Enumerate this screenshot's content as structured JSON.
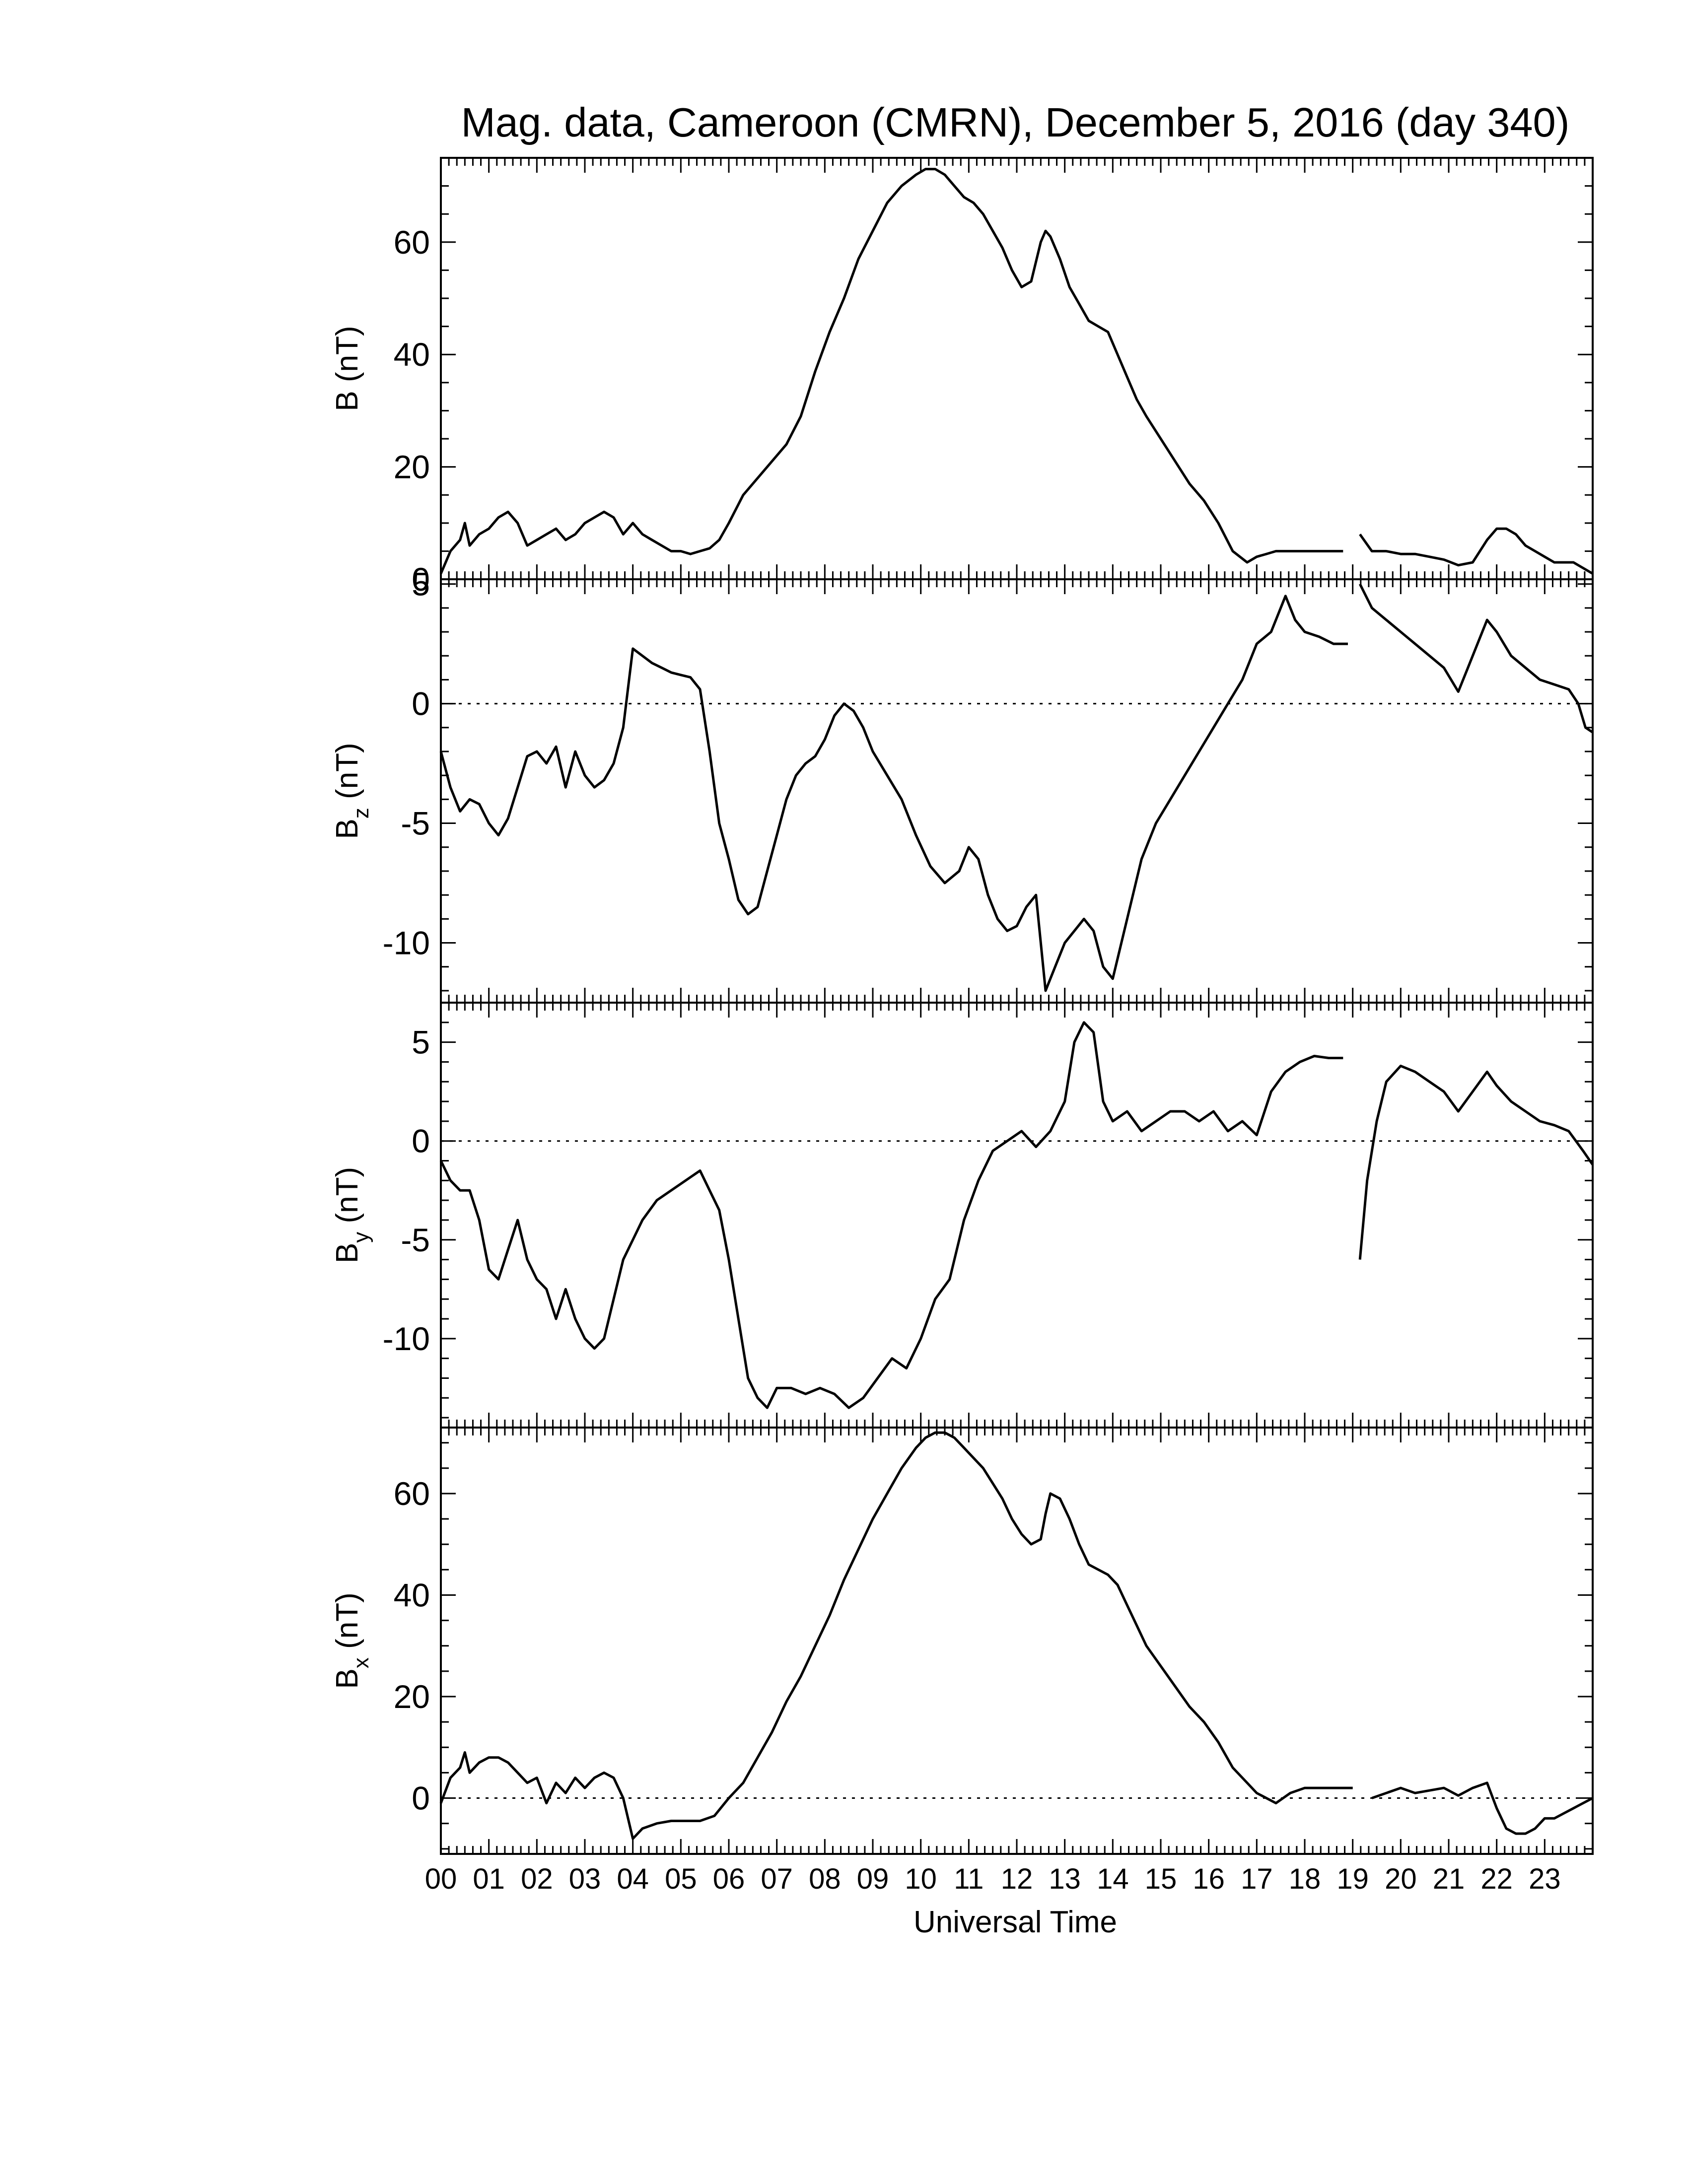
{
  "chart_data": {
    "type": "line",
    "title": "Mag. data, Cameroon (CMRN), December 5, 2016 (day 340)",
    "xlabel": "Universal Time",
    "xlim": [
      0,
      24
    ],
    "x_tick_labels": [
      "00",
      "01",
      "02",
      "03",
      "04",
      "05",
      "06",
      "07",
      "08",
      "09",
      "10",
      "11",
      "12",
      "13",
      "14",
      "15",
      "16",
      "17",
      "18",
      "19",
      "20",
      "21",
      "22",
      "23"
    ],
    "grid": false,
    "line_color": "#000000",
    "panels": [
      {
        "id": "b",
        "ylabel_main": "B",
        "ylabel_sub": "",
        "ylabel_unit": "(nT)",
        "ylim": [
          0,
          75
        ],
        "yticks": [
          0,
          20,
          40,
          60
        ],
        "zero_line": false,
        "gap": [
          19.0,
          19.15
        ],
        "x": [
          0,
          0.2,
          0.4,
          0.5,
          0.6,
          0.8,
          1.0,
          1.2,
          1.4,
          1.6,
          1.8,
          2.0,
          2.2,
          2.4,
          2.6,
          2.8,
          3.0,
          3.2,
          3.4,
          3.6,
          3.8,
          4.0,
          4.2,
          4.4,
          4.6,
          4.8,
          5.0,
          5.2,
          5.4,
          5.6,
          5.8,
          6.0,
          6.3,
          6.6,
          6.9,
          7.2,
          7.5,
          7.8,
          8.1,
          8.4,
          8.7,
          9.0,
          9.3,
          9.6,
          9.9,
          10.1,
          10.3,
          10.5,
          10.7,
          10.9,
          11.1,
          11.3,
          11.5,
          11.7,
          11.9,
          12.1,
          12.3,
          12.5,
          12.6,
          12.7,
          12.9,
          13.1,
          13.3,
          13.5,
          13.7,
          13.9,
          14.1,
          14.3,
          14.5,
          14.7,
          15.0,
          15.3,
          15.6,
          15.9,
          16.2,
          16.5,
          16.8,
          17.0,
          17.2,
          17.4,
          17.7,
          18.0,
          18.4,
          18.8,
          19.0,
          19.15,
          19.4,
          19.7,
          20.0,
          20.3,
          20.6,
          20.9,
          21.2,
          21.5,
          21.8,
          22.0,
          22.2,
          22.4,
          22.6,
          22.8,
          23.0,
          23.2,
          23.4,
          23.6,
          23.8,
          24.0
        ],
        "y": [
          1,
          5,
          7,
          10,
          6,
          8,
          9,
          11,
          12,
          10,
          6,
          7,
          8,
          9,
          7,
          8,
          10,
          11,
          12,
          11,
          8,
          10,
          8,
          7,
          6,
          5,
          5,
          4.5,
          5,
          5.5,
          7,
          10,
          15,
          18,
          21,
          24,
          29,
          37,
          44,
          50,
          57,
          62,
          67,
          70,
          72,
          73,
          73,
          72,
          70,
          68,
          67,
          65,
          62,
          59,
          55,
          52,
          53,
          60,
          62,
          61,
          57,
          52,
          49,
          46,
          45,
          44,
          40,
          36,
          32,
          29,
          25,
          21,
          17,
          14,
          10,
          5,
          3,
          4,
          4.5,
          5,
          5,
          5,
          5,
          5,
          "null",
          8,
          5,
          5,
          4.5,
          4.5,
          4,
          3.5,
          2.5,
          3,
          7,
          9,
          9,
          8,
          6,
          5,
          4,
          3,
          3,
          3,
          2,
          1
        ]
      },
      {
        "id": "bz",
        "ylabel_main": "B",
        "ylabel_sub": "z",
        "ylabel_unit": "(nT)",
        "ylim": [
          -12.5,
          5.2
        ],
        "yticks": [
          -10,
          -5,
          0,
          5
        ],
        "zero_line": true,
        "gap": [
          19.0,
          19.15
        ],
        "x": [
          0,
          0.2,
          0.4,
          0.6,
          0.8,
          1.0,
          1.2,
          1.4,
          1.6,
          1.8,
          2.0,
          2.2,
          2.4,
          2.6,
          2.8,
          3.0,
          3.2,
          3.4,
          3.6,
          3.8,
          4.0,
          4.2,
          4.4,
          4.6,
          4.8,
          5.0,
          5.2,
          5.4,
          5.6,
          5.8,
          6.0,
          6.2,
          6.4,
          6.6,
          6.8,
          7.0,
          7.2,
          7.4,
          7.6,
          7.8,
          8.0,
          8.2,
          8.4,
          8.6,
          8.8,
          9.0,
          9.3,
          9.6,
          9.9,
          10.2,
          10.5,
          10.8,
          11.0,
          11.2,
          11.4,
          11.6,
          11.8,
          12.0,
          12.2,
          12.4,
          12.6,
          12.8,
          13.0,
          13.2,
          13.4,
          13.6,
          13.8,
          14.0,
          14.3,
          14.6,
          14.9,
          15.2,
          15.5,
          15.8,
          16.1,
          16.4,
          16.7,
          17.0,
          17.3,
          17.6,
          17.8,
          18.0,
          18.3,
          18.6,
          18.9,
          19.0,
          19.15,
          19.4,
          19.7,
          20.0,
          20.3,
          20.6,
          20.9,
          21.2,
          21.4,
          21.6,
          21.8,
          22.0,
          22.3,
          22.6,
          22.9,
          23.2,
          23.5,
          23.7,
          23.85,
          24.0
        ],
        "y": [
          -2,
          -3.5,
          -4.5,
          -4,
          -4.2,
          -5,
          -5.5,
          -4.8,
          -3.5,
          -2.2,
          -2,
          -2.5,
          -1.8,
          -3.5,
          -2,
          -3,
          -3.5,
          -3.2,
          -2.5,
          -1,
          2.3,
          2,
          1.7,
          1.5,
          1.3,
          1.2,
          1.1,
          0.6,
          -2,
          -5,
          -6.5,
          -8.2,
          -8.8,
          -8.5,
          -7,
          -5.5,
          -4,
          -3,
          -2.5,
          -2.2,
          -1.5,
          -0.5,
          0,
          -0.3,
          -1,
          -2,
          -3,
          -4,
          -5.5,
          -6.8,
          -7.5,
          -7,
          -6,
          -6.5,
          -8,
          -9,
          -9.5,
          -9.3,
          -8.5,
          -8,
          -12,
          -11,
          -10,
          -9.5,
          -9,
          -9.5,
          -11,
          -11.5,
          -9,
          -6.5,
          -5,
          -4,
          -3,
          -2,
          -1,
          0,
          1,
          2.5,
          3,
          4.5,
          3.5,
          3,
          2.8,
          2.5,
          2.5,
          "null",
          5,
          4,
          3.5,
          3,
          2.5,
          2,
          1.5,
          0.5,
          1.5,
          2.5,
          3.5,
          3,
          2,
          1.5,
          1,
          0.8,
          0.6,
          0,
          -1,
          -1.2
        ]
      },
      {
        "id": "by",
        "ylabel_main": "B",
        "ylabel_sub": "y",
        "ylabel_unit": "(nT)",
        "ylim": [
          -14.5,
          7
        ],
        "yticks": [
          -10,
          -5,
          0,
          5
        ],
        "zero_line": true,
        "gap": [
          19.0,
          19.15
        ],
        "x": [
          0,
          0.2,
          0.4,
          0.6,
          0.8,
          1.0,
          1.2,
          1.4,
          1.6,
          1.8,
          2.0,
          2.2,
          2.4,
          2.6,
          2.8,
          3.0,
          3.2,
          3.4,
          3.6,
          3.8,
          4.0,
          4.2,
          4.5,
          4.8,
          5.1,
          5.4,
          5.6,
          5.8,
          6.0,
          6.2,
          6.4,
          6.6,
          6.8,
          7.0,
          7.3,
          7.6,
          7.9,
          8.2,
          8.5,
          8.8,
          9.1,
          9.4,
          9.7,
          10.0,
          10.3,
          10.6,
          10.9,
          11.2,
          11.5,
          11.8,
          12.1,
          12.4,
          12.7,
          13.0,
          13.2,
          13.4,
          13.6,
          13.8,
          14.0,
          14.3,
          14.6,
          14.9,
          15.2,
          15.5,
          15.8,
          16.1,
          16.4,
          16.7,
          17.0,
          17.3,
          17.6,
          17.9,
          18.2,
          18.5,
          18.8,
          19.0,
          19.15,
          19.3,
          19.5,
          19.7,
          20.0,
          20.3,
          20.6,
          20.9,
          21.2,
          21.5,
          21.8,
          22.0,
          22.3,
          22.6,
          22.9,
          23.2,
          23.5,
          23.8,
          24.0
        ],
        "y": [
          -1,
          -2,
          -2.5,
          -2.5,
          -4,
          -6.5,
          -7,
          -5.5,
          -4,
          -6,
          -7,
          -7.5,
          -9,
          -7.5,
          -9,
          -10,
          -10.5,
          -10,
          -8,
          -6,
          -5,
          -4,
          -3,
          -2.5,
          -2,
          -1.5,
          -2.5,
          -3.5,
          -6,
          -9,
          -12,
          -13,
          -13.5,
          -12.5,
          -12.5,
          -12.8,
          -12.5,
          -12.8,
          -13.5,
          -13,
          -12,
          -11,
          -11.5,
          -10,
          -8,
          -7,
          -4,
          -2,
          -0.5,
          0,
          0.5,
          -0.3,
          0.5,
          2,
          5,
          6,
          5.5,
          2,
          1,
          1.5,
          0.5,
          1,
          1.5,
          1.5,
          1,
          1.5,
          0.5,
          1,
          0.3,
          2.5,
          3.5,
          4,
          4.3,
          4.2,
          4.2,
          "null",
          -6,
          -2,
          1,
          3,
          3.8,
          3.5,
          3,
          2.5,
          1.5,
          2.5,
          3.5,
          2.8,
          2,
          1.5,
          1,
          0.8,
          0.5,
          -0.5,
          -1.2
        ]
      },
      {
        "id": "bx",
        "ylabel_main": "B",
        "ylabel_sub": "x",
        "ylabel_unit": "(nT)",
        "ylim": [
          -11,
          73
        ],
        "yticks": [
          0,
          20,
          40,
          60
        ],
        "zero_line": true,
        "gap": [
          19.0,
          19.15
        ],
        "x": [
          0,
          0.2,
          0.4,
          0.5,
          0.6,
          0.8,
          1.0,
          1.2,
          1.4,
          1.6,
          1.8,
          2.0,
          2.2,
          2.4,
          2.6,
          2.8,
          3.0,
          3.2,
          3.4,
          3.6,
          3.8,
          4.0,
          4.2,
          4.5,
          4.8,
          5.1,
          5.4,
          5.7,
          6.0,
          6.3,
          6.6,
          6.9,
          7.2,
          7.5,
          7.8,
          8.1,
          8.4,
          8.7,
          9.0,
          9.3,
          9.6,
          9.9,
          10.1,
          10.3,
          10.5,
          10.7,
          10.9,
          11.1,
          11.3,
          11.5,
          11.7,
          11.9,
          12.1,
          12.3,
          12.5,
          12.6,
          12.7,
          12.9,
          13.1,
          13.3,
          13.5,
          13.7,
          13.9,
          14.1,
          14.3,
          14.5,
          14.7,
          15.0,
          15.3,
          15.6,
          15.9,
          16.2,
          16.5,
          16.8,
          17.0,
          17.2,
          17.4,
          17.7,
          18.0,
          18.4,
          18.8,
          19.0,
          19.15,
          19.4,
          19.7,
          20.0,
          20.3,
          20.6,
          20.9,
          21.2,
          21.5,
          21.8,
          22.0,
          22.2,
          22.4,
          22.6,
          22.8,
          23.0,
          23.2,
          23.4,
          23.6,
          23.8,
          24.0
        ],
        "y": [
          -1,
          4,
          6,
          9,
          5,
          7,
          8,
          8,
          7,
          5,
          3,
          4,
          -1,
          3,
          1,
          4,
          2,
          4,
          5,
          4,
          0,
          -8,
          -6,
          -5,
          -4.5,
          -4.5,
          -4.5,
          -3.5,
          0,
          3,
          8,
          13,
          19,
          24,
          30,
          36,
          43,
          49,
          55,
          60,
          65,
          69,
          71,
          72,
          72,
          71,
          69,
          67,
          65,
          62,
          59,
          55,
          52,
          50,
          51,
          56,
          60,
          59,
          55,
          50,
          46,
          45,
          44,
          42,
          38,
          34,
          30,
          26,
          22,
          18,
          15,
          11,
          6,
          3,
          1,
          0,
          -1,
          1,
          2,
          2,
          2,
          2,
          "null",
          0,
          1,
          2,
          1,
          1.5,
          2,
          0.5,
          2,
          3,
          -2,
          -6,
          -7,
          -7,
          -6,
          -4,
          -4,
          -3,
          -2,
          -1,
          0
        ]
      }
    ]
  }
}
